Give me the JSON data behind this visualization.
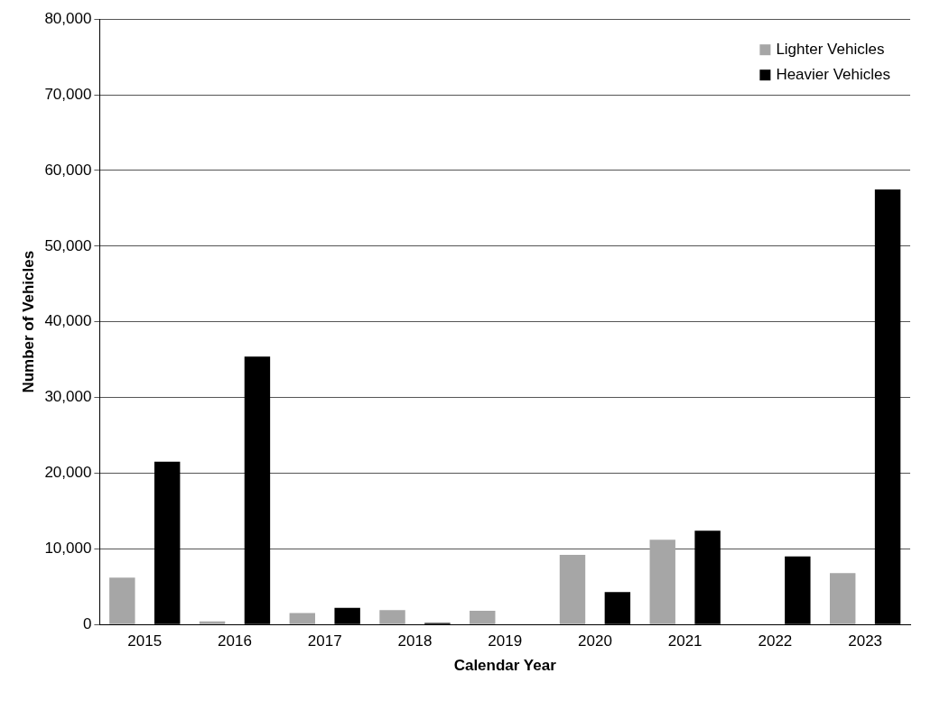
{
  "chart_data": {
    "type": "bar",
    "xlabel": "Calendar Year",
    "ylabel": "Number of Vehicles",
    "categories": [
      "2015",
      "2016",
      "2017",
      "2018",
      "2019",
      "2020",
      "2021",
      "2022",
      "2023"
    ],
    "series": [
      {
        "name": "Lighter Vehicles",
        "color": "#a6a6a6",
        "values": [
          6200,
          400,
          1500,
          1900,
          1800,
          9200,
          11200,
          0,
          6800
        ]
      },
      {
        "name": "Heavier Vehicles",
        "color": "#000000",
        "values": [
          21500,
          35400,
          2200,
          200,
          0,
          4300,
          12400,
          9000,
          57500
        ]
      }
    ],
    "ylim": [
      0,
      80000
    ],
    "yticks": [
      {
        "value": 0,
        "label": "0"
      },
      {
        "value": 10000,
        "label": "10,000"
      },
      {
        "value": 20000,
        "label": "20,000"
      },
      {
        "value": 30000,
        "label": "30,000"
      },
      {
        "value": 40000,
        "label": "40,000"
      },
      {
        "value": 50000,
        "label": "50,000"
      },
      {
        "value": 60000,
        "label": "60,000"
      },
      {
        "value": 70000,
        "label": "70,000"
      },
      {
        "value": 80000,
        "label": "80,000"
      }
    ],
    "grid": "y",
    "legend": "top right"
  }
}
